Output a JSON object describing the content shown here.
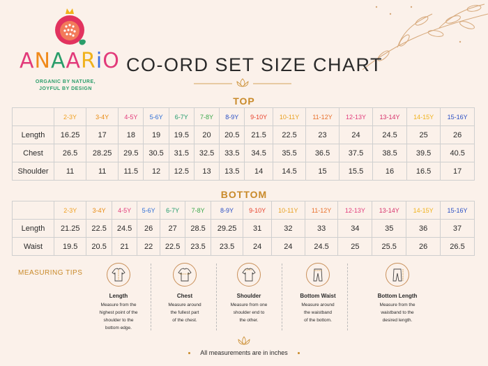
{
  "brand": {
    "name_letters": [
      {
        "ch": "A",
        "color": "#e23a7a"
      },
      {
        "ch": "N",
        "color": "#f08a1c"
      },
      {
        "ch": "A",
        "color": "#2a9d6a"
      },
      {
        "ch": "A",
        "color": "#e23a7a"
      },
      {
        "ch": "R",
        "color": "#f0b21c"
      },
      {
        "ch": "i",
        "color": "#3a6ee2"
      },
      {
        "ch": "O",
        "color": "#e23a7a"
      }
    ],
    "tagline_1": "ORGANIC BY NATURE,",
    "tagline_2": "JOYFUL BY DESIGN"
  },
  "title": "CO-ORD SET SIZE CHART",
  "sizes": [
    {
      "label": "2-3Y",
      "color": "#f0a020"
    },
    {
      "label": "3-4Y",
      "color": "#e88a10"
    },
    {
      "label": "4-5Y",
      "color": "#e23a7a"
    },
    {
      "label": "5-6Y",
      "color": "#2f6fd6"
    },
    {
      "label": "6-7Y",
      "color": "#1f9a6a"
    },
    {
      "label": "7-8Y",
      "color": "#3aa84a"
    },
    {
      "label": "8-9Y",
      "color": "#2a4fc4"
    },
    {
      "label": "9-10Y",
      "color": "#e8402a"
    },
    {
      "label": "10-11Y",
      "color": "#e8a020"
    },
    {
      "label": "11-12Y",
      "color": "#e8702a"
    },
    {
      "label": "12-13Y",
      "color": "#e23a7a"
    },
    {
      "label": "13-14Y",
      "color": "#d6306a"
    },
    {
      "label": "14-15Y",
      "color": "#f0b21c"
    },
    {
      "label": "15-16Y",
      "color": "#2a4fc4"
    }
  ],
  "top": {
    "heading": "TOP",
    "rows": [
      {
        "label": "Length",
        "values": [
          "16.25",
          "17",
          "18",
          "19",
          "19.5",
          "20",
          "20.5",
          "21.5",
          "22.5",
          "23",
          "24",
          "24.5",
          "25",
          "26"
        ]
      },
      {
        "label": "Chest",
        "values": [
          "26.5",
          "28.25",
          "29.5",
          "30.5",
          "31.5",
          "32.5",
          "33.5",
          "34.5",
          "35.5",
          "36.5",
          "37.5",
          "38.5",
          "39.5",
          "40.5"
        ]
      },
      {
        "label": "Shoulder",
        "values": [
          "11",
          "11",
          "11.5",
          "12",
          "12.5",
          "13",
          "13.5",
          "14",
          "14.5",
          "15",
          "15.5",
          "16",
          "16.5",
          "17"
        ]
      }
    ]
  },
  "bottom": {
    "heading": "BOTTOM",
    "rows": [
      {
        "label": "Length",
        "values": [
          "21.25",
          "22.5",
          "24.5",
          "26",
          "27",
          "28.5",
          "29.25",
          "31",
          "32",
          "33",
          "34",
          "35",
          "36",
          "37"
        ]
      },
      {
        "label": "Waist",
        "values": [
          "19.5",
          "20.5",
          "21",
          "22",
          "22.5",
          "23.5",
          "23.5",
          "24",
          "24",
          "24.5",
          "25",
          "25.5",
          "26",
          "26.5"
        ]
      }
    ]
  },
  "tips": {
    "heading": "MEASURING TIPS",
    "items": [
      {
        "name": "Length",
        "icon": "shirt-length-icon",
        "desc": [
          "Measure from the",
          "highest point of the",
          "shoulder to the",
          "bottom edge."
        ]
      },
      {
        "name": "Chest",
        "icon": "shirt-chest-icon",
        "desc": [
          "Measure around",
          "the fullest part",
          "of the chest."
        ]
      },
      {
        "name": "Shoulder",
        "icon": "shirt-shoulder-icon",
        "desc": [
          "Measure from one",
          "shoulder end to",
          "the other."
        ]
      },
      {
        "name": "Bottom Waist",
        "icon": "pants-waist-icon",
        "desc": [
          "Measure around",
          "the waistband",
          "of the bottom."
        ]
      },
      {
        "name": "Bottom Length",
        "icon": "pants-length-icon",
        "desc": [
          "Measure from the",
          "waistband to the",
          "desired length."
        ]
      }
    ]
  },
  "footer": "All measurements are in inches",
  "accent": "#c98a2a"
}
